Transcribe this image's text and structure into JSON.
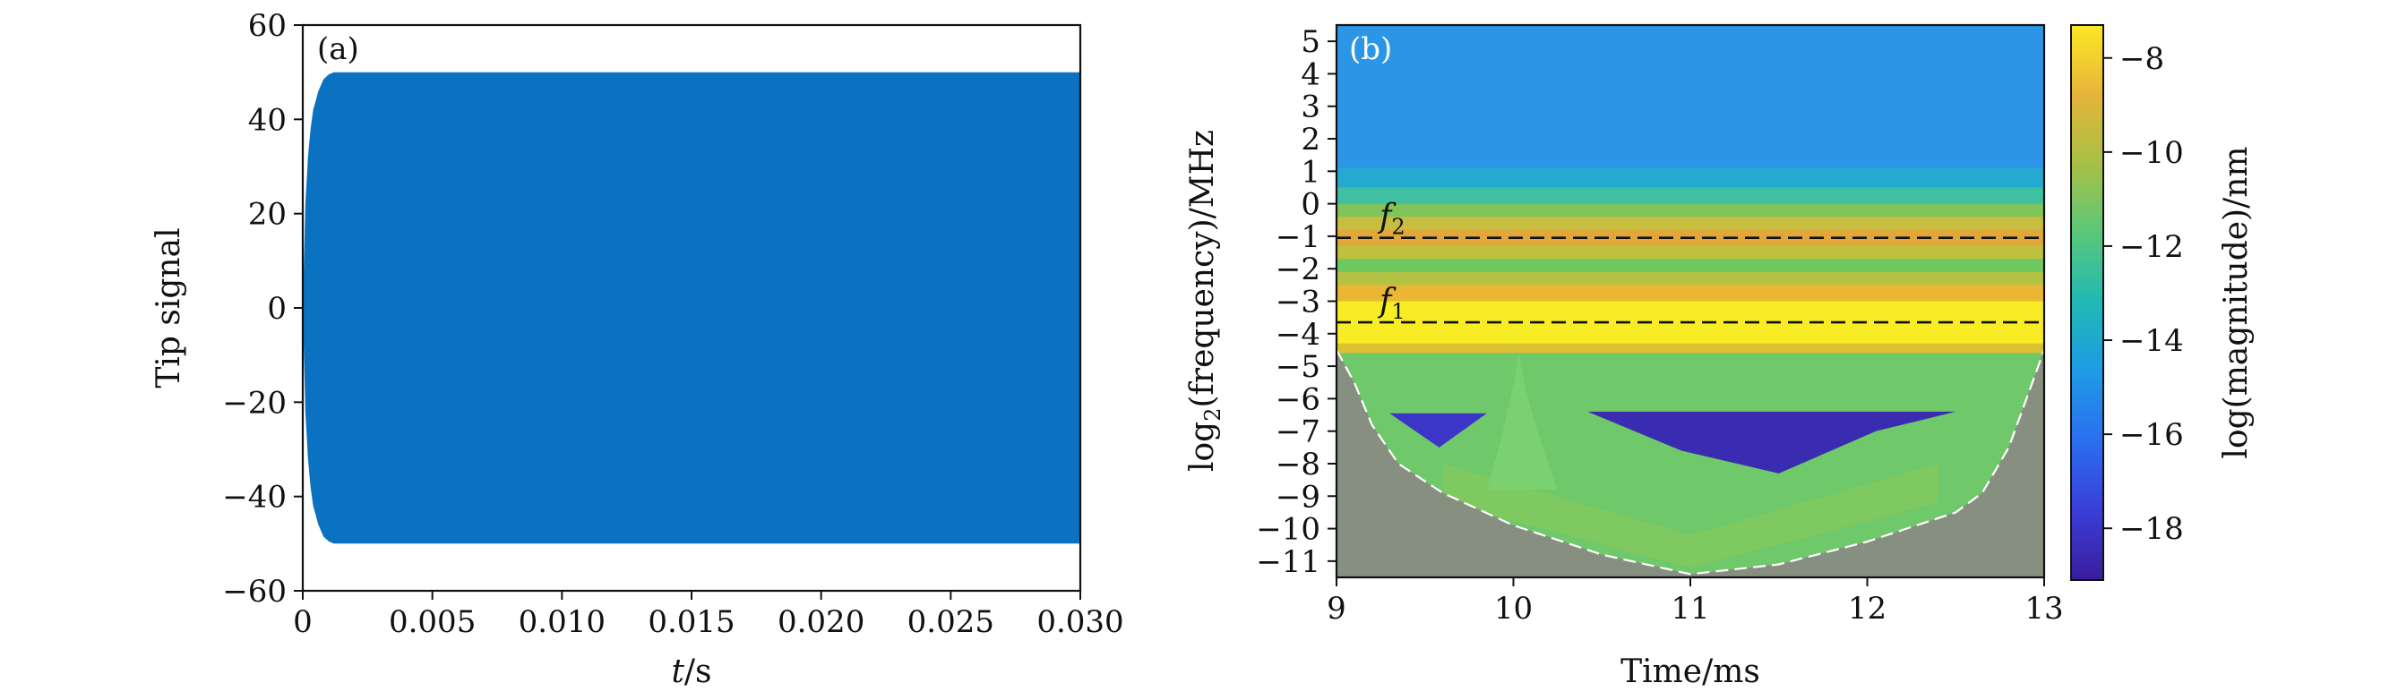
{
  "chart_data": [
    {
      "type": "line",
      "panel_label": "(a)",
      "title": "",
      "xlabel_var": "t",
      "xlabel_unit": "/s",
      "ylabel": "Tip signal",
      "xlim": [
        0,
        0.03
      ],
      "ylim": [
        -60,
        60
      ],
      "xticks": [
        0,
        0.005,
        0.01,
        0.015,
        0.02,
        0.025,
        0.03
      ],
      "xtick_labels": [
        "0",
        "0.005",
        "0.010",
        "0.015",
        "0.020",
        "0.025",
        "0.030"
      ],
      "yticks": [
        -60,
        -40,
        -20,
        0,
        20,
        40,
        60
      ],
      "ytick_labels": [
        "−60",
        "−40",
        "−20",
        "0",
        "20",
        "40",
        "60"
      ],
      "series": [
        {
          "name": "Tip signal envelope",
          "description": "dense oscillation filling band; amplitude rises from 0 to 50 by t≈0.0012 s then stays at ±50",
          "x": [
            0,
            0.0001,
            0.0002,
            0.0003,
            0.0004,
            0.0006,
            0.0008,
            0.001,
            0.0012,
            0.0015,
            0.03
          ],
          "upper": [
            0,
            22,
            32,
            38,
            42,
            46,
            48.5,
            49.5,
            50,
            50,
            50
          ],
          "lower": [
            0,
            -22,
            -32,
            -38,
            -42,
            -46,
            -48.5,
            -49.5,
            -50,
            -50,
            -50
          ],
          "color": "#0a72c0"
        }
      ]
    },
    {
      "type": "heatmap",
      "panel_label": "(b)",
      "title": "",
      "xlabel": "Time/ms",
      "ylabel_prefix": "log",
      "ylabel_sub": "2",
      "ylabel_suffix": "(frequency)/MHz",
      "xlim": [
        9,
        13
      ],
      "ylim": [
        -11.5,
        5.5
      ],
      "xticks": [
        9,
        10,
        11,
        12,
        13
      ],
      "xtick_labels": [
        "9",
        "10",
        "11",
        "12",
        "13"
      ],
      "yticks": [
        5,
        4,
        3,
        2,
        1,
        0,
        -1,
        -2,
        -3,
        -4,
        -5,
        -6,
        -7,
        -8,
        -9,
        -10,
        -11
      ],
      "ytick_labels": [
        "5",
        "4",
        "3",
        "2",
        "1",
        "0",
        "−1",
        "−2",
        "−3",
        "−4",
        "−5",
        "−6",
        "−7",
        "−8",
        "−9",
        "−10",
        "−11"
      ],
      "bands": [
        {
          "y0": 1.1,
          "y1": 5.5,
          "color": "#2c96e6"
        },
        {
          "y0": 0.5,
          "y1": 1.1,
          "color": "#24a9d2"
        },
        {
          "y0": 0.0,
          "y1": 0.5,
          "color": "#3fc0a0"
        },
        {
          "y0": -0.4,
          "y1": 0.0,
          "color": "#80c45a"
        },
        {
          "y0": -0.8,
          "y1": -0.4,
          "color": "#c7bd3e"
        },
        {
          "y0": -1.3,
          "y1": -0.8,
          "color": "#e0a83a"
        },
        {
          "y0": -1.7,
          "y1": -1.3,
          "color": "#bfc03c"
        },
        {
          "y0": -2.1,
          "y1": -1.7,
          "color": "#6ec860"
        },
        {
          "y0": -2.5,
          "y1": -2.1,
          "color": "#b4c244"
        },
        {
          "y0": -3.0,
          "y1": -2.5,
          "color": "#eab634"
        },
        {
          "y0": -4.3,
          "y1": -3.0,
          "color": "#f8ec24"
        },
        {
          "y0": -4.6,
          "y1": -4.3,
          "color": "#dcc232"
        }
      ],
      "cone_region_color": "#6fc86a",
      "outside_cone_color": "#878f80",
      "cone_boundary_x": [
        9.0,
        9.1,
        9.2,
        9.35,
        9.6,
        10.0,
        10.5,
        11.0,
        11.5,
        12.0,
        12.5,
        12.65,
        12.8,
        12.9,
        13.0
      ],
      "cone_boundary_y": [
        -4.5,
        -5.5,
        -6.8,
        -8.0,
        -8.9,
        -9.9,
        -10.8,
        -11.4,
        -11.1,
        -10.4,
        -9.5,
        -8.9,
        -7.5,
        -6.0,
        -4.5
      ],
      "dashed_lines": [
        {
          "label_base": "f",
          "label_sub": "2",
          "y": -1.05
        },
        {
          "label_base": "f",
          "label_sub": "1",
          "y": -3.65
        }
      ],
      "colorbar": {
        "label": "log(magnitude)/nm",
        "range": [
          -19.1,
          -7.3
        ],
        "ticks": [
          -8,
          -10,
          -12,
          -14,
          -16,
          -18
        ],
        "tick_labels": [
          "−8",
          "−10",
          "−12",
          "−14",
          "−16",
          "−18"
        ],
        "colors": [
          "#fde725",
          "#e6b43a",
          "#a8c046",
          "#59c77a",
          "#20b8b4",
          "#1f9ae6",
          "#2b6ef0",
          "#3a3ed8",
          "#3b1c9e"
        ]
      }
    }
  ]
}
